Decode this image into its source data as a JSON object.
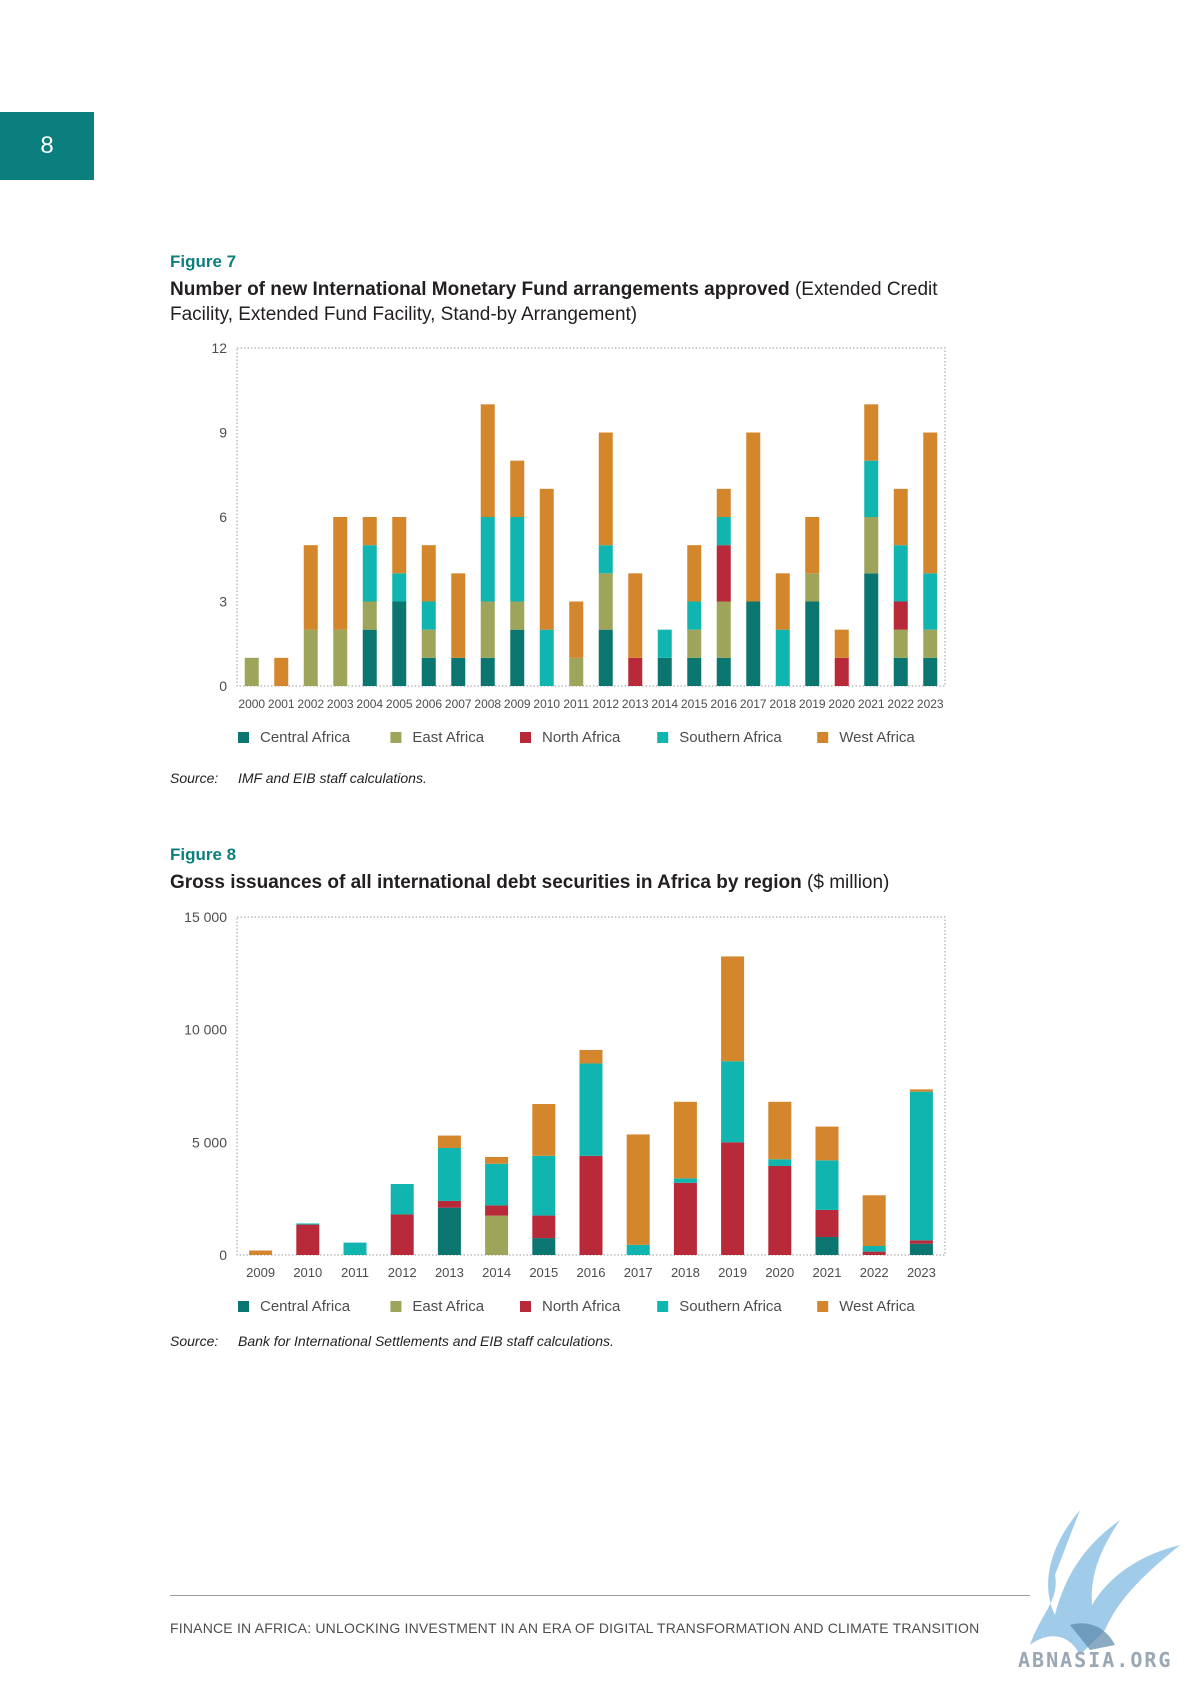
{
  "page_number": "8",
  "figure7": {
    "label": "Figure 7",
    "title_bold": "Number of new International Monetary Fund arrangements approved",
    "title_rest": " (Extended Credit Facility, Extended Fund Facility, Stand-by Arrangement)",
    "source_label": "Source:",
    "source_text": "IMF and EIB staff calculations."
  },
  "figure8": {
    "label": "Figure 8",
    "title_bold": "Gross issuances of all international debt securities in Africa by region",
    "title_rest": " ($ million)",
    "source_label": "Source:",
    "source_text": "Bank for International Settlements and EIB staff calculations."
  },
  "colors": {
    "Central Africa": "#0b7670",
    "East Africa": "#9ea55a",
    "North Africa": "#b8293a",
    "Southern Africa": "#11b5b0",
    "West Africa": "#d4862c"
  },
  "chart_data": [
    {
      "type": "bar",
      "stacked": true,
      "categories": [
        "2000",
        "2001",
        "2002",
        "2003",
        "2004",
        "2005",
        "2006",
        "2007",
        "2008",
        "2009",
        "2010",
        "2011",
        "2012",
        "2013",
        "2014",
        "2015",
        "2016",
        "2017",
        "2018",
        "2019",
        "2020",
        "2021",
        "2022",
        "2023"
      ],
      "ylim": [
        0,
        12
      ],
      "yticks": [
        0,
        3,
        6,
        9,
        12
      ],
      "ytick_labels": [
        "0",
        "3",
        "6",
        "9",
        "12"
      ],
      "grid": false,
      "legend_position": "bottom",
      "series": [
        {
          "name": "Central Africa",
          "values": [
            0,
            0,
            0,
            0,
            2,
            3,
            1,
            1,
            1,
            2,
            0,
            0,
            2,
            0,
            1,
            1,
            1,
            3,
            0,
            3,
            0,
            4,
            1,
            1
          ]
        },
        {
          "name": "East Africa",
          "values": [
            1,
            0,
            2,
            2,
            1,
            0,
            1,
            0,
            2,
            1,
            0,
            1,
            2,
            0,
            0,
            1,
            2,
            0,
            0,
            1,
            0,
            2,
            1,
            1
          ]
        },
        {
          "name": "North Africa",
          "values": [
            0,
            0,
            0,
            0,
            0,
            0,
            0,
            0,
            0,
            0,
            0,
            0,
            0,
            1,
            0,
            0,
            2,
            0,
            0,
            0,
            1,
            0,
            1,
            0
          ]
        },
        {
          "name": "Southern Africa",
          "values": [
            0,
            0,
            0,
            0,
            2,
            1,
            1,
            0,
            3,
            3,
            2,
            0,
            1,
            0,
            1,
            1,
            1,
            0,
            2,
            0,
            0,
            2,
            2,
            2
          ]
        },
        {
          "name": "West Africa",
          "values": [
            0,
            1,
            3,
            4,
            1,
            2,
            2,
            3,
            4,
            2,
            5,
            2,
            4,
            3,
            0,
            2,
            1,
            6,
            2,
            2,
            1,
            2,
            2,
            5
          ]
        }
      ]
    },
    {
      "type": "bar",
      "stacked": true,
      "categories": [
        "2009",
        "2010",
        "2011",
        "2012",
        "2013",
        "2014",
        "2015",
        "2016",
        "2017",
        "2018",
        "2019",
        "2020",
        "2021",
        "2022",
        "2023"
      ],
      "ylim": [
        0,
        15000
      ],
      "yticks": [
        0,
        5000,
        10000,
        15000
      ],
      "ytick_labels": [
        "0",
        "5 000",
        "10 000",
        "15 000"
      ],
      "grid": false,
      "legend_position": "bottom",
      "series": [
        {
          "name": "Central Africa",
          "values": [
            0,
            0,
            0,
            0,
            2100,
            0,
            750,
            0,
            0,
            0,
            0,
            0,
            800,
            0,
            500
          ]
        },
        {
          "name": "East Africa",
          "values": [
            0,
            0,
            0,
            0,
            0,
            1750,
            0,
            0,
            0,
            0,
            0,
            0,
            0,
            0,
            0
          ]
        },
        {
          "name": "North Africa",
          "values": [
            0,
            1350,
            0,
            1800,
            300,
            450,
            1000,
            4400,
            0,
            3200,
            5000,
            3950,
            1200,
            150,
            150
          ]
        },
        {
          "name": "Southern Africa",
          "values": [
            0,
            50,
            550,
            1350,
            2350,
            1850,
            2650,
            4100,
            450,
            200,
            3600,
            300,
            2200,
            250,
            6600
          ]
        },
        {
          "name": "West Africa",
          "values": [
            200,
            0,
            0,
            0,
            550,
            300,
            2300,
            600,
            4900,
            3400,
            4650,
            2550,
            1500,
            2250,
            100
          ]
        }
      ]
    }
  ],
  "footer": "FINANCE IN AFRICA: UNLOCKING INVESTMENT IN AN ERA OF DIGITAL TRANSFORMATION AND CLIMATE TRANSITION",
  "watermark": "ABNASIA.ORG"
}
